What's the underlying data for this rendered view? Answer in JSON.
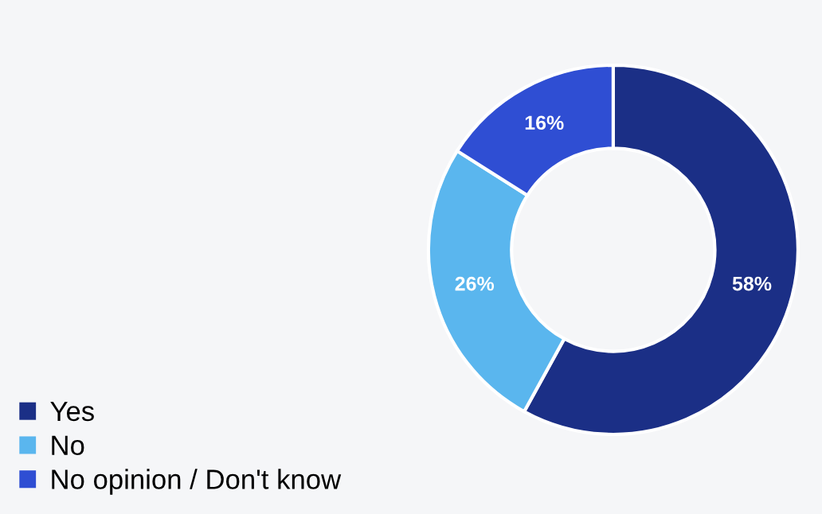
{
  "chart_data": {
    "type": "donut",
    "categories": [
      "Yes",
      "No",
      "No opinion / Don't know"
    ],
    "values": [
      58,
      26,
      16
    ],
    "colors": [
      "#1b2f86",
      "#5ab6ee",
      "#2f4ed3"
    ],
    "value_labels": [
      "58%",
      "26%",
      "16%"
    ],
    "legend": "bottom left"
  }
}
